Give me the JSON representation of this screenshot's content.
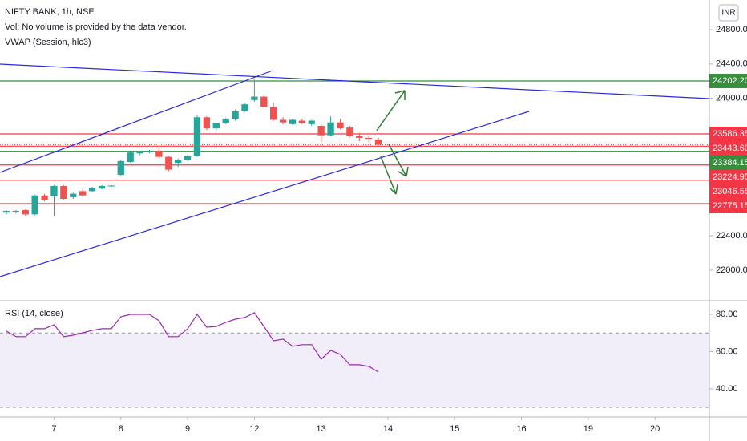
{
  "chart_data": [
    {
      "type": "candlestick",
      "title": "NIFTY BANK, 1h, NSE",
      "subtitle": "Vol: No volume is provided by the data vendor.",
      "annotation": "VWAP (Session, hlc3)",
      "currency": "INR",
      "open": [
        22670,
        22680,
        22700,
        22650,
        22870,
        22860,
        22980,
        22850,
        22920,
        22920,
        22950,
        22975,
        23110,
        23260,
        23360,
        23380,
        23390,
        23320,
        23250,
        23280,
        23330,
        23780,
        23650,
        23710,
        23760,
        23850,
        23980,
        24020,
        23900,
        23750,
        23700,
        23740,
        23700,
        23680,
        23570,
        23720,
        23660,
        23560,
        23540,
        23520
      ],
      "high": [
        22700,
        22700,
        22710,
        22880,
        22890,
        22990,
        22990,
        22900,
        22940,
        22970,
        22990,
        22990,
        23280,
        23390,
        23390,
        23400,
        23420,
        23330,
        23300,
        23340,
        23800,
        23790,
        23720,
        23770,
        23870,
        23940,
        24220,
        24030,
        23950,
        23780,
        23760,
        23760,
        23750,
        23700,
        23790,
        23760,
        23680,
        23600,
        23560,
        23540
      ],
      "low": [
        22650,
        22660,
        22630,
        22640,
        22800,
        22630,
        22820,
        22830,
        22850,
        22910,
        22940,
        22970,
        23100,
        23250,
        23340,
        23360,
        23300,
        23150,
        23200,
        23270,
        23320,
        23630,
        23620,
        23700,
        23740,
        23840,
        23960,
        23890,
        23740,
        23700,
        23690,
        23700,
        23680,
        23480,
        23560,
        23640,
        23550,
        23500,
        23490,
        23450
      ],
      "close": [
        22690,
        22690,
        22650,
        22870,
        22820,
        22980,
        22830,
        22890,
        22870,
        22960,
        22980,
        22985,
        23270,
        23370,
        23380,
        23390,
        23320,
        23170,
        23280,
        23330,
        23780,
        23650,
        23710,
        23760,
        23850,
        23930,
        24020,
        23900,
        23750,
        23720,
        23750,
        23710,
        23740,
        23570,
        23720,
        23650,
        23560,
        23540,
        23530,
        23460
      ],
      "up_color": "#26a69a",
      "down_color": "#ef5350",
      "ylim": [
        21645,
        25145
      ],
      "yticks": [
        {
          "value": 24800,
          "label": "24800.00"
        },
        {
          "value": 24400,
          "label": "24400.00"
        },
        {
          "value": 24000,
          "label": "24000.00"
        },
        {
          "value": 22400,
          "label": "22400.00"
        },
        {
          "value": 22000,
          "label": "22000.00"
        }
      ],
      "xlim": [
        -0.67,
        73.7
      ],
      "xticks": [
        {
          "value": 5,
          "label": "7"
        },
        {
          "value": 12,
          "label": "8"
        },
        {
          "value": 19,
          "label": "9"
        },
        {
          "value": 26,
          "label": "12"
        },
        {
          "value": 33,
          "label": "13"
        },
        {
          "value": 40,
          "label": "14"
        },
        {
          "value": 47,
          "label": "15"
        },
        {
          "value": 54,
          "label": "16"
        },
        {
          "value": 61,
          "label": "19"
        },
        {
          "value": 68,
          "label": "20"
        }
      ],
      "levels": [
        {
          "value": 24202.2,
          "label": "24202.20",
          "color": "#388e3c"
        },
        {
          "value": 23586.35,
          "label": "23586.35",
          "color": "#f23645"
        },
        {
          "value": 23443.6,
          "label": "23443.60",
          "color": "#f23645"
        },
        {
          "value": 23384.15,
          "label": "23384.15",
          "color": "#388e3c"
        },
        {
          "value": 23224.95,
          "label": "23224.95",
          "color": "#f23645"
        },
        {
          "value": 23046.55,
          "label": "23046.55",
          "color": "#f23645"
        },
        {
          "value": 22775.15,
          "label": "22775.15",
          "color": "#f23645"
        }
      ]
    },
    {
      "type": "line",
      "title": "RSI (14, close)",
      "values": [
        71.0,
        68.0,
        68.0,
        72.3,
        72.3,
        74.4,
        68.0,
        68.8,
        70.1,
        71.4,
        72.3,
        72.3,
        78.7,
        80.0,
        80.0,
        80.0,
        76.6,
        68.0,
        68.0,
        72.3,
        80.0,
        73.1,
        73.5,
        75.7,
        77.4,
        78.3,
        80.9,
        73.5,
        65.8,
        66.7,
        62.8,
        63.7,
        63.7,
        55.9,
        60.6,
        58.5,
        52.9,
        52.9,
        52.0,
        49.0
      ],
      "color": "#9c27b0",
      "band": [
        30,
        70
      ],
      "band_color": "#7e57c2",
      "ylim": [
        24.9,
        87.3
      ],
      "yticks": [
        {
          "value": 80,
          "label": "80.00"
        },
        {
          "value": 60,
          "label": "60.00"
        },
        {
          "value": 40,
          "label": "40.00"
        }
      ]
    }
  ]
}
